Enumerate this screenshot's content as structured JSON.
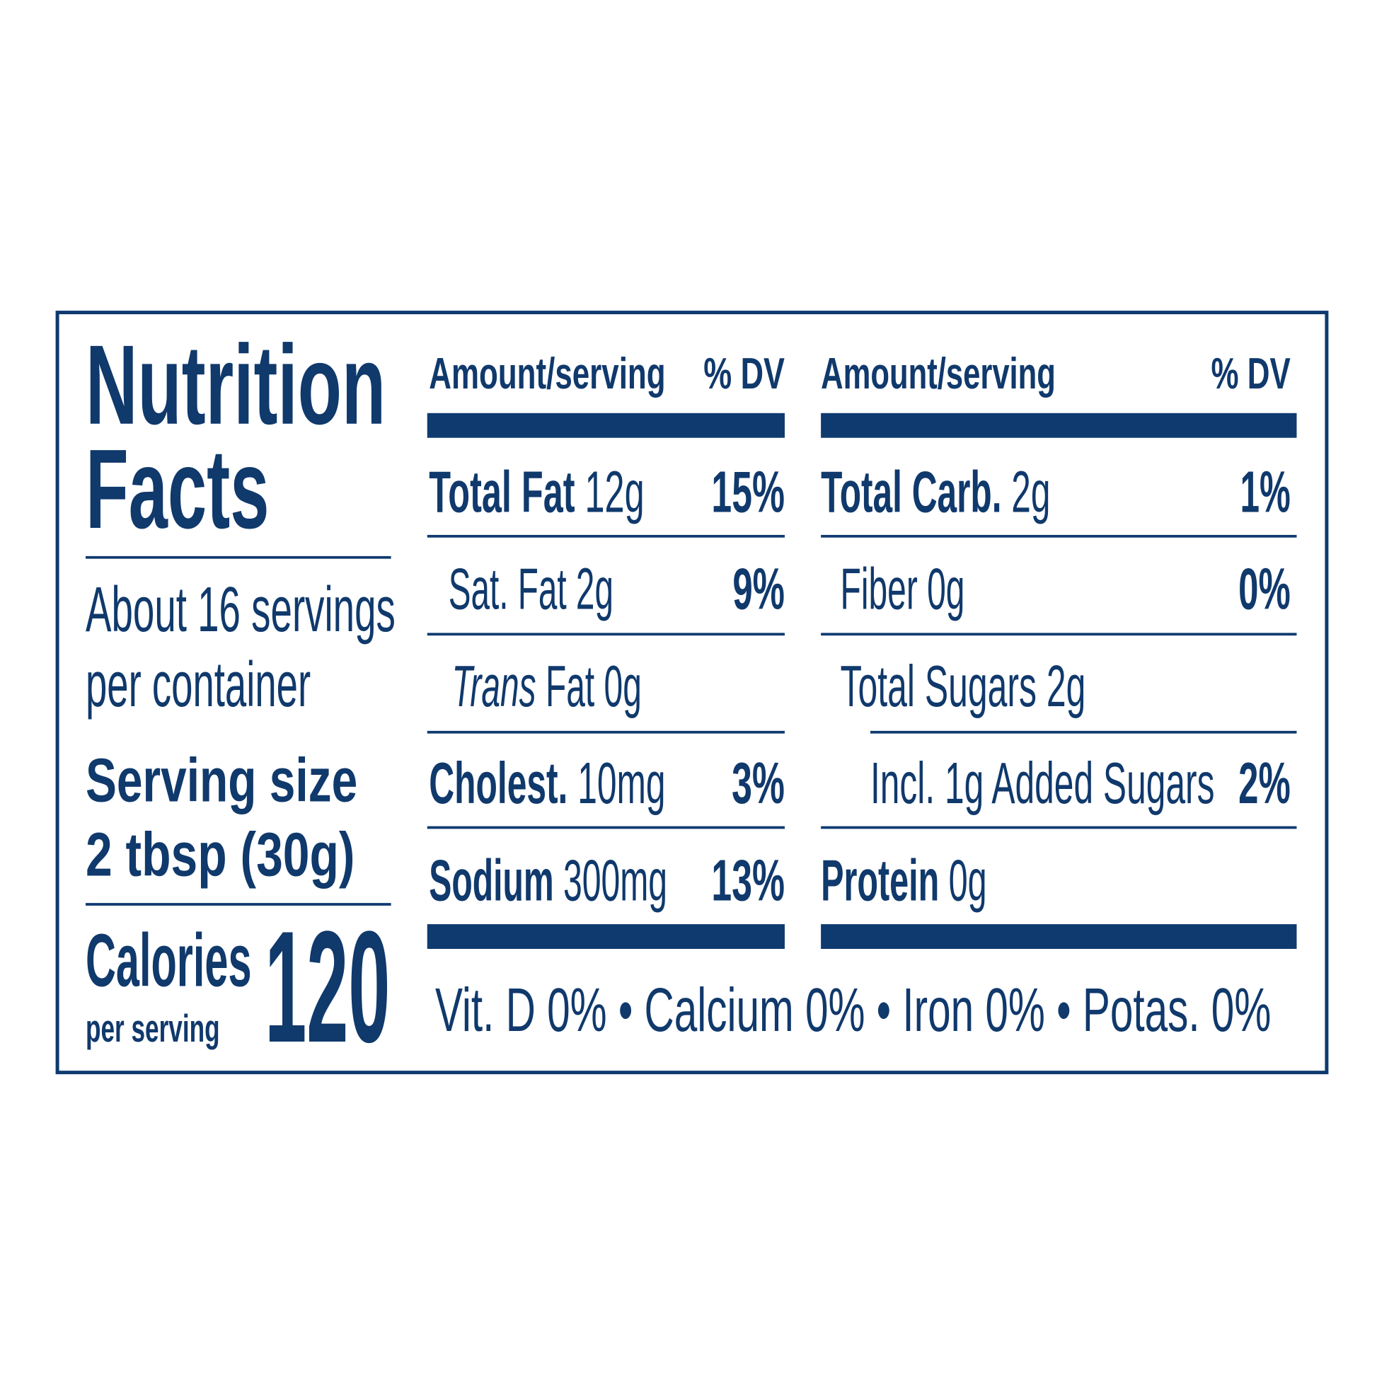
{
  "title": {
    "line1": "Nutrition",
    "line2": "Facts"
  },
  "servings": {
    "line1": "About 16 servings",
    "line2": "per container"
  },
  "serving_size": {
    "label": "Serving size",
    "amount": "2 tbsp (30g)"
  },
  "calories": {
    "label": "Calories",
    "sublabel": "per serving",
    "value": "120"
  },
  "columns": [
    {
      "header": {
        "amount": "Amount/serving",
        "dv": "% DV"
      },
      "rows": [
        {
          "name": "Total Fat",
          "amount": "12g",
          "dv": "15%"
        },
        {
          "name": "Sat. Fat",
          "amount": "2g",
          "dv": "9%"
        },
        {
          "name": "Trans",
          "amount": "Fat 0g"
        },
        {
          "name": "Cholest.",
          "amount": "10mg",
          "dv": "3%"
        },
        {
          "name": "Sodium",
          "amount": "300mg",
          "dv": "13%"
        }
      ]
    },
    {
      "header": {
        "amount": "Amount/serving",
        "dv": "% DV"
      },
      "rows": [
        {
          "name": "Total Carb.",
          "amount": "2g",
          "dv": "1%"
        },
        {
          "name": "Fiber",
          "amount": "0g",
          "dv": "0%"
        },
        {
          "name": "Total Sugars",
          "amount": "2g"
        },
        {
          "name": "Incl. 1g Added Sugars",
          "dv": "2%"
        },
        {
          "name": "Protein",
          "amount": "0g"
        }
      ]
    }
  ],
  "footer": "Vit. D 0% • Calcium 0% • Iron 0% • Potas. 0%"
}
